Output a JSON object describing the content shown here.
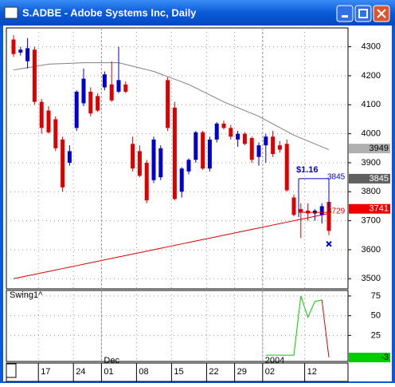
{
  "window_title": "S.ADBE - Adobe Systems Inc, Daily",
  "chart_data": [
    {
      "type": "candlestick",
      "categories": [
        null,
        null,
        null,
        null,
        "17",
        null,
        null,
        null,
        null,
        "24",
        null,
        null,
        null,
        "01",
        null,
        null,
        null,
        null,
        "08",
        null,
        null,
        null,
        null,
        "15",
        null,
        null,
        null,
        null,
        "22",
        null,
        null,
        null,
        "29",
        null,
        null,
        null,
        "02",
        null,
        null,
        null,
        null,
        null,
        "12",
        null,
        null,
        null
      ],
      "period_labels": [
        {
          "label": "Dec",
          "at": "01"
        },
        {
          "label": "2004",
          "at": "02"
        }
      ],
      "open": [
        4325,
        4280,
        4250,
        4290,
        4110,
        4080,
        4050,
        3980,
        3900,
        4020,
        4105,
        4145,
        4130,
        4160,
        4170,
        4145,
        4170,
        3965,
        3940,
        3900,
        3840,
        3850,
        4185,
        4090,
        3800,
        3870,
        3910,
        4005,
        3880,
        3980,
        4035,
        4020,
        3980,
        4000,
        3985,
        3920,
        3960,
        3990,
        3960,
        3965,
        3780,
        3740,
        3735,
        3725,
        3720,
        3765
      ],
      "high": [
        4340,
        4300,
        4330,
        4300,
        4120,
        4095,
        4060,
        3990,
        3960,
        4150,
        4225,
        4160,
        4140,
        4215,
        4250,
        4300,
        4180,
        3990,
        3960,
        3910,
        3990,
        3960,
        4195,
        4110,
        3885,
        3915,
        4010,
        4010,
        3990,
        4040,
        4045,
        4030,
        4010,
        4005,
        3990,
        3970,
        4000,
        4010,
        3975,
        3980,
        3790,
        3760,
        3760,
        3740,
        3760,
        3780
      ],
      "low": [
        4265,
        4270,
        4225,
        4100,
        4000,
        4000,
        3940,
        3800,
        3890,
        4010,
        4095,
        4060,
        4075,
        4150,
        4110,
        4140,
        4140,
        3870,
        3850,
        3760,
        3830,
        3840,
        4010,
        3770,
        3780,
        3860,
        3900,
        3875,
        3870,
        3970,
        4015,
        3980,
        3955,
        3960,
        3900,
        3890,
        3900,
        3920,
        3935,
        3800,
        3715,
        3640,
        3700,
        3700,
        3690,
        3650
      ],
      "close": [
        4275,
        4290,
        4295,
        4110,
        4020,
        4005,
        3950,
        3815,
        3940,
        4145,
        4190,
        4070,
        4080,
        4205,
        4115,
        4185,
        4145,
        3880,
        3855,
        3770,
        3980,
        3950,
        4020,
        3775,
        3880,
        3910,
        4005,
        3880,
        3980,
        4035,
        4020,
        3990,
        4000,
        3965,
        3910,
        3960,
        3990,
        3930,
        3945,
        3805,
        3720,
        3730,
        3725,
        3735,
        3750,
        3665
      ],
      "up_color": "#0000cc",
      "down_color": "#dd0000",
      "series": [
        {
          "color": "#808080",
          "values": [
            4220,
            4224,
            4228,
            4232,
            4236,
            4240,
            4241,
            4242,
            4243,
            4244,
            4245,
            4245,
            4245,
            4245,
            4245,
            4245,
            4239,
            4233,
            4227,
            4221,
            4215,
            4206,
            4197,
            4188,
            4179,
            4170,
            4158,
            4146,
            4134,
            4122,
            4110,
            4100,
            4090,
            4080,
            4070,
            4060,
            4047,
            4034,
            4021,
            4008,
            3995,
            3985,
            3975,
            3965,
            3955,
            3945
          ]
        },
        {
          "color": "#dd0000",
          "values": [
            3500,
            3505,
            3510,
            3515,
            3520,
            3525,
            3530,
            3535,
            3540,
            3545,
            3550,
            3555,
            3560,
            3565,
            3570,
            3575,
            3580,
            3585,
            3590,
            3595,
            3600,
            3605,
            3610,
            3615,
            3620,
            3625,
            3630,
            3635,
            3640,
            3645,
            3650,
            3655,
            3660,
            3665,
            3670,
            3675,
            3680,
            3685,
            3690,
            3695,
            3700,
            3705,
            3710,
            3715,
            3720,
            3725
          ]
        }
      ],
      "price_labels": [
        {
          "value": 3949,
          "color": "#b0b0b0"
        },
        {
          "value": 3845,
          "color": "#606060"
        },
        {
          "value": 3741,
          "color": "#ee0000"
        }
      ],
      "annotations": [
        {
          "text": "$1.16",
          "color": "#0000cc"
        },
        {
          "text": "3845",
          "color": "#0000cc"
        },
        {
          "text": "3729",
          "color": "#dd0000"
        }
      ],
      "ylim": [
        3465,
        4365
      ],
      "yticks": [
        3500,
        3600,
        3700,
        3800,
        3900,
        4000,
        4100,
        4200,
        4300
      ],
      "grid": true
    },
    {
      "type": "line",
      "title": "Swing1^",
      "values": [
        null,
        null,
        null,
        null,
        null,
        null,
        null,
        null,
        null,
        null,
        null,
        null,
        null,
        null,
        null,
        null,
        null,
        null,
        null,
        null,
        null,
        null,
        null,
        null,
        null,
        null,
        null,
        null,
        null,
        null,
        null,
        null,
        null,
        null,
        null,
        null,
        0,
        0,
        0,
        0,
        0,
        75,
        48,
        68,
        70,
        -3
      ],
      "color": "#00cc00",
      "last_segment_color": "#dd0000",
      "value_labels": [
        {
          "text": "-3",
          "color": "#00cc00"
        }
      ],
      "ylim": [
        -8,
        82
      ],
      "yticks": [
        25,
        50,
        75
      ],
      "grid": true
    }
  ]
}
